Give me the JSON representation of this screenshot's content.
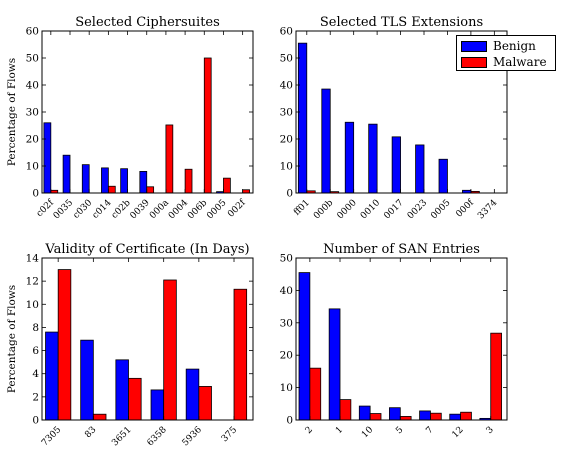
{
  "colors": {
    "benign": "#0000ff",
    "malware": "#ff0000"
  },
  "legend": {
    "benign_label": "Benign",
    "malware_label": "Malware",
    "placement": "top-right"
  },
  "chart_data": [
    {
      "type": "bar",
      "title": "Selected Ciphersuites",
      "ylabel": "Percentage of Flows",
      "xlabel": "",
      "ylim": [
        0,
        60
      ],
      "yticks": [
        0,
        10,
        20,
        30,
        40,
        50,
        60
      ],
      "categories": [
        "c02f",
        "0035",
        "c030",
        "c014",
        "c02b",
        "0039",
        "000a",
        "0004",
        "006b",
        "0005",
        "002f"
      ],
      "series": [
        {
          "name": "Benign",
          "values": [
            26,
            14,
            10.5,
            9.3,
            9,
            8,
            0,
            0,
            0,
            0.5,
            0
          ]
        },
        {
          "name": "Malware",
          "values": [
            1,
            0,
            0,
            2.5,
            0,
            2.3,
            25.2,
            8.8,
            50,
            5.5,
            1.2
          ]
        }
      ]
    },
    {
      "type": "bar",
      "title": "Selected TLS Extensions",
      "ylabel": "",
      "xlabel": "",
      "ylim": [
        0,
        60
      ],
      "yticks": [
        0,
        10,
        20,
        30,
        40,
        50,
        60
      ],
      "categories": [
        "ff01",
        "000b",
        "0000",
        "0010",
        "0017",
        "0023",
        "0005",
        "000f",
        "3374"
      ],
      "series": [
        {
          "name": "Benign",
          "values": [
            55.5,
            38.5,
            26.2,
            25.5,
            20.8,
            17.8,
            12.5,
            1,
            0
          ]
        },
        {
          "name": "Malware",
          "values": [
            0.8,
            0.5,
            0,
            0,
            0,
            0,
            0,
            0.6,
            0
          ]
        }
      ]
    },
    {
      "type": "bar",
      "title": "Validity of Certificate (In Days)",
      "ylabel": "Percentage of Flows",
      "xlabel": "",
      "ylim": [
        0,
        14
      ],
      "yticks": [
        0,
        2,
        4,
        6,
        8,
        10,
        12,
        14
      ],
      "categories": [
        "7305",
        "83",
        "3651",
        "6358",
        "5936",
        "375"
      ],
      "series": [
        {
          "name": "Benign",
          "values": [
            7.6,
            6.9,
            5.2,
            2.6,
            4.4,
            0
          ]
        },
        {
          "name": "Malware",
          "values": [
            13,
            0.5,
            3.6,
            12.1,
            2.9,
            11.3
          ]
        }
      ]
    },
    {
      "type": "bar",
      "title": "Number of SAN Entries",
      "ylabel": "",
      "xlabel": "",
      "ylim": [
        0,
        50
      ],
      "yticks": [
        0,
        10,
        20,
        30,
        40,
        50
      ],
      "categories": [
        "2",
        "1",
        "10",
        "5",
        "7",
        "12",
        "3"
      ],
      "series": [
        {
          "name": "Benign",
          "values": [
            45.5,
            34.3,
            4.3,
            3.8,
            2.8,
            1.8,
            0.5
          ]
        },
        {
          "name": "Malware",
          "values": [
            16,
            6.3,
            2,
            1.1,
            2.1,
            2.4,
            26.8
          ]
        }
      ]
    }
  ]
}
